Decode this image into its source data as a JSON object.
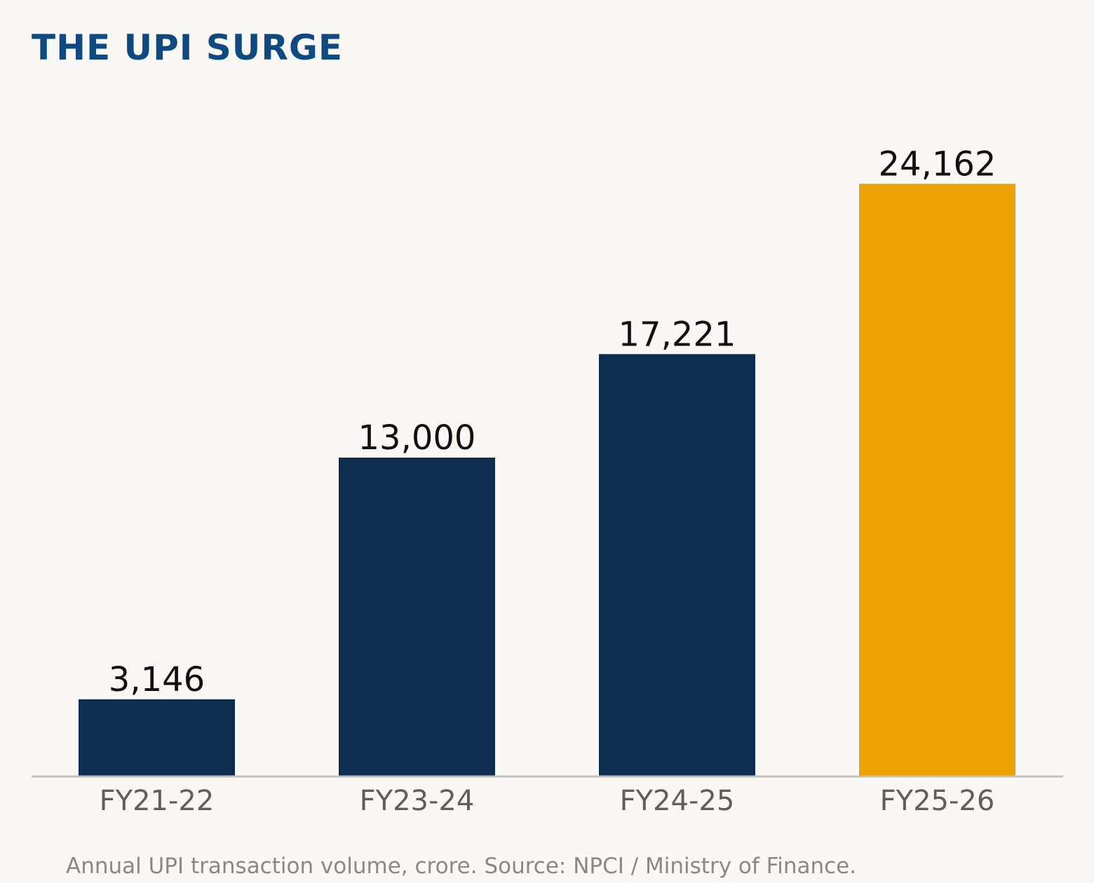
{
  "chart_data": {
    "type": "bar",
    "title": "THE UPI SURGE",
    "categories": [
      "FY21-22",
      "FY23-24",
      "FY24-25",
      "FY25-26"
    ],
    "values": [
      3146,
      13000,
      17221,
      24162
    ],
    "value_labels": [
      "3,146",
      "13,000",
      "17,221",
      "24,162"
    ],
    "ylim": [
      0,
      27000
    ],
    "bar_colors": [
      "#0c2c50",
      "#0c2c50",
      "#0c2c50",
      "#eca200"
    ],
    "grid": false,
    "legend": "none",
    "caption": "Annual UPI transaction volume, crore. Source: NPCI / Ministry of Finance."
  },
  "colors": {
    "title": "#0e4a80",
    "bar": "#0c2c50",
    "highlight": "#eca200",
    "baseline": "#c3c1bc",
    "value_label": "#111111",
    "tick_label": "#5e5e5c",
    "caption": "#888884",
    "background": "#f9f8f5"
  }
}
